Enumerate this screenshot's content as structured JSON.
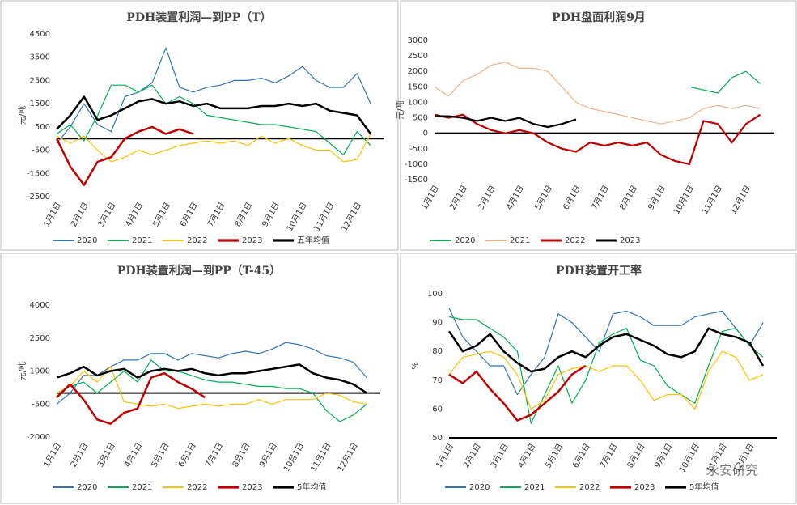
{
  "chart_data": [
    {
      "type": "line",
      "title": "PDH装置利润—到PP（T）",
      "ylabel": "元/吨",
      "categories": [
        "1月1日",
        null,
        "2月1日",
        null,
        "3月1日",
        null,
        "4月1日",
        null,
        "5月1日",
        null,
        "6月1日",
        null,
        "7月1日",
        null,
        "8月1日",
        null,
        "9月1日",
        null,
        "10月1日",
        null,
        "11月1日",
        null,
        "12月1日",
        null
      ],
      "ylim": [
        -2500,
        4500
      ],
      "yticks": [
        -2500,
        -1500,
        -500,
        500,
        1500,
        2500,
        3500,
        4500
      ],
      "series": [
        {
          "name": "2020",
          "color": "#2e75b6",
          "width": 1.2,
          "values": [
            -200,
            500,
            1500,
            600,
            300,
            1800,
            2000,
            2400,
            3900,
            2200,
            2000,
            2200,
            2300,
            2500,
            2500,
            2600,
            2400,
            2700,
            3100,
            2500,
            2200,
            2200,
            2800,
            1500
          ]
        },
        {
          "name": "2021",
          "color": "#00b050",
          "width": 1.2,
          "values": [
            200,
            600,
            -100,
            1000,
            2300,
            2300,
            2000,
            2300,
            1500,
            1800,
            1500,
            1000,
            900,
            800,
            700,
            600,
            600,
            500,
            400,
            300,
            -200,
            -700,
            300,
            -300
          ]
        },
        {
          "name": "2022",
          "color": "#ffc000",
          "width": 1.2,
          "values": [
            100,
            -200,
            100,
            -500,
            -1000,
            -800,
            -500,
            -700,
            -500,
            -300,
            -200,
            -100,
            -200,
            -100,
            -300,
            100,
            -200,
            0,
            -300,
            -500,
            -500,
            -1000,
            -900,
            200
          ]
        },
        {
          "name": "2023",
          "color": "#c00000",
          "width": 2.5,
          "values": [
            0,
            -1200,
            -2000,
            -1000,
            -800,
            0,
            300,
            500,
            200,
            400,
            200,
            null,
            null,
            null,
            null,
            null,
            null,
            null,
            null,
            null,
            null,
            null,
            null,
            null
          ]
        },
        {
          "name": "五年均值",
          "color": "#000000",
          "width": 2.5,
          "values": [
            400,
            1000,
            1800,
            800,
            1000,
            1300,
            1600,
            1700,
            1500,
            1600,
            1400,
            1500,
            1300,
            1300,
            1300,
            1400,
            1400,
            1500,
            1400,
            1500,
            1200,
            1100,
            1000,
            200
          ]
        }
      ]
    },
    {
      "type": "line",
      "title": "PDH盘面利润9月",
      "ylabel": "元/吨",
      "categories": [
        "1月1日",
        null,
        "2月1日",
        null,
        "3月1日",
        null,
        "4月1日",
        null,
        "5月1日",
        null,
        "6月1日",
        null,
        "7月1日",
        null,
        "8月1日",
        null,
        "9月1日",
        null,
        "10月1日",
        null,
        "11月1日",
        null,
        "12月1日",
        null
      ],
      "ylim": [
        -1500,
        3000
      ],
      "yticks": [
        -1500,
        -1000,
        -500,
        0,
        500,
        1000,
        1500,
        2000,
        2500,
        3000
      ],
      "series": [
        {
          "name": "2020",
          "color": "#00b050",
          "width": 1.2,
          "values": [
            null,
            null,
            null,
            null,
            null,
            null,
            null,
            null,
            null,
            null,
            null,
            null,
            null,
            null,
            null,
            null,
            null,
            null,
            1500,
            1400,
            1300,
            1800,
            2000,
            1600
          ]
        },
        {
          "name": "2021",
          "color": "#f4b183",
          "width": 1.2,
          "values": [
            1500,
            1200,
            1700,
            1900,
            2200,
            2300,
            2100,
            2100,
            2000,
            1500,
            1000,
            800,
            700,
            600,
            500,
            400,
            300,
            400,
            500,
            800,
            900,
            800,
            900,
            800
          ]
        },
        {
          "name": "2022",
          "color": "#c00000",
          "width": 2.2,
          "values": [
            600,
            500,
            600,
            300,
            100,
            0,
            100,
            0,
            -300,
            -500,
            -600,
            -300,
            -400,
            -300,
            -400,
            -300,
            -700,
            -900,
            -1000,
            400,
            300,
            -300,
            300,
            600
          ]
        },
        {
          "name": "2023",
          "color": "#000000",
          "width": 2.2,
          "values": [
            550,
            550,
            500,
            400,
            500,
            400,
            500,
            300,
            200,
            300,
            450,
            null,
            null,
            null,
            null,
            null,
            null,
            null,
            null,
            null,
            null,
            null,
            null,
            null
          ]
        }
      ]
    },
    {
      "type": "line",
      "title": "PDH装置利润—到PP（T-45）",
      "ylabel": "元/吨",
      "categories": [
        "1月1日",
        null,
        "2月1日",
        null,
        "3月1日",
        null,
        "4月1日",
        null,
        "5月1日",
        null,
        "6月1日",
        null,
        "7月1日",
        null,
        "8月1日",
        null,
        "9月1日",
        null,
        "10月1日",
        null,
        "11月1日",
        null,
        "12月1日",
        null
      ],
      "ylim": [
        -2000,
        4000
      ],
      "yticks": [
        -2000,
        -500,
        1000,
        2500,
        4000
      ],
      "series": [
        {
          "name": "2020",
          "color": "#2e75b6",
          "width": 1.2,
          "values": [
            -500,
            0,
            800,
            800,
            1200,
            1500,
            1500,
            1800,
            1800,
            1500,
            1800,
            1700,
            1600,
            1800,
            1900,
            1800,
            2000,
            2300,
            2200,
            2000,
            1700,
            1600,
            1400,
            700
          ]
        },
        {
          "name": "2021",
          "color": "#00b050",
          "width": 1.2,
          "values": [
            0,
            300,
            500,
            0,
            500,
            1000,
            500,
            1500,
            1000,
            1000,
            800,
            600,
            500,
            500,
            400,
            300,
            300,
            200,
            200,
            0,
            -800,
            -1300,
            -1000,
            -500
          ]
        },
        {
          "name": "2022",
          "color": "#ffc000",
          "width": 1.2,
          "values": [
            0,
            300,
            1000,
            500,
            1200,
            -400,
            -500,
            -600,
            -500,
            -700,
            -600,
            -500,
            -600,
            -500,
            -500,
            -300,
            -500,
            -300,
            -300,
            -300,
            0,
            -100,
            -400,
            -500
          ]
        },
        {
          "name": "2023",
          "color": "#c00000",
          "width": 2.5,
          "values": [
            -200,
            400,
            -300,
            -1200,
            -1400,
            -900,
            -700,
            700,
            900,
            500,
            200,
            -200,
            null,
            null,
            null,
            null,
            null,
            null,
            null,
            null,
            null,
            null,
            null,
            null
          ]
        },
        {
          "name": "5年均值",
          "color": "#000000",
          "width": 2.5,
          "values": [
            700,
            900,
            1200,
            800,
            1000,
            1100,
            700,
            1000,
            1100,
            1000,
            1100,
            900,
            800,
            900,
            900,
            1000,
            1100,
            1200,
            1300,
            900,
            700,
            600,
            400,
            0
          ]
        }
      ]
    },
    {
      "type": "line",
      "title": "PDH装置开工率",
      "ylabel": "%",
      "categories": [
        "1月1日",
        null,
        "2月1日",
        null,
        "3月1日",
        null,
        "4月1日",
        null,
        "5月1日",
        null,
        "6月1日",
        null,
        "7月1日",
        null,
        "8月1日",
        null,
        "9月1日",
        null,
        "10月1日",
        null,
        "11月1日",
        null,
        "12月1日",
        null
      ],
      "ylim": [
        50,
        100
      ],
      "yticks": [
        50,
        60,
        70,
        80,
        90,
        100
      ],
      "series": [
        {
          "name": "2020",
          "color": "#2e75b6",
          "width": 1.2,
          "values": [
            95,
            85,
            80,
            75,
            75,
            65,
            72,
            78,
            93,
            90,
            85,
            80,
            93,
            94,
            92,
            89,
            89,
            89,
            92,
            93,
            94,
            88,
            82,
            90
          ]
        },
        {
          "name": "2021",
          "color": "#00b050",
          "width": 1.2,
          "values": [
            92,
            91,
            91,
            88,
            85,
            80,
            55,
            65,
            75,
            62,
            70,
            83,
            86,
            88,
            77,
            75,
            68,
            65,
            62,
            75,
            87,
            88,
            82,
            78
          ]
        },
        {
          "name": "2022",
          "color": "#ffc000",
          "width": 1.2,
          "values": [
            72,
            78,
            79,
            80,
            78,
            72,
            60,
            63,
            72,
            74,
            75,
            73,
            75,
            75,
            70,
            63,
            65,
            65,
            60,
            73,
            80,
            78,
            70,
            72
          ]
        },
        {
          "name": "2023",
          "color": "#c00000",
          "width": 2.5,
          "values": [
            72,
            69,
            73,
            67,
            62,
            56,
            58,
            62,
            66,
            72,
            75,
            null,
            null,
            null,
            null,
            null,
            null,
            null,
            null,
            null,
            null,
            null,
            null,
            null
          ]
        },
        {
          "name": "5年均值",
          "color": "#000000",
          "width": 2.5,
          "values": [
            87,
            80,
            82,
            86,
            80,
            76,
            73,
            74,
            78,
            80,
            78,
            82,
            85,
            86,
            84,
            82,
            79,
            78,
            80,
            88,
            86,
            85,
            83,
            75
          ]
        }
      ]
    }
  ],
  "watermark": "永安研究"
}
